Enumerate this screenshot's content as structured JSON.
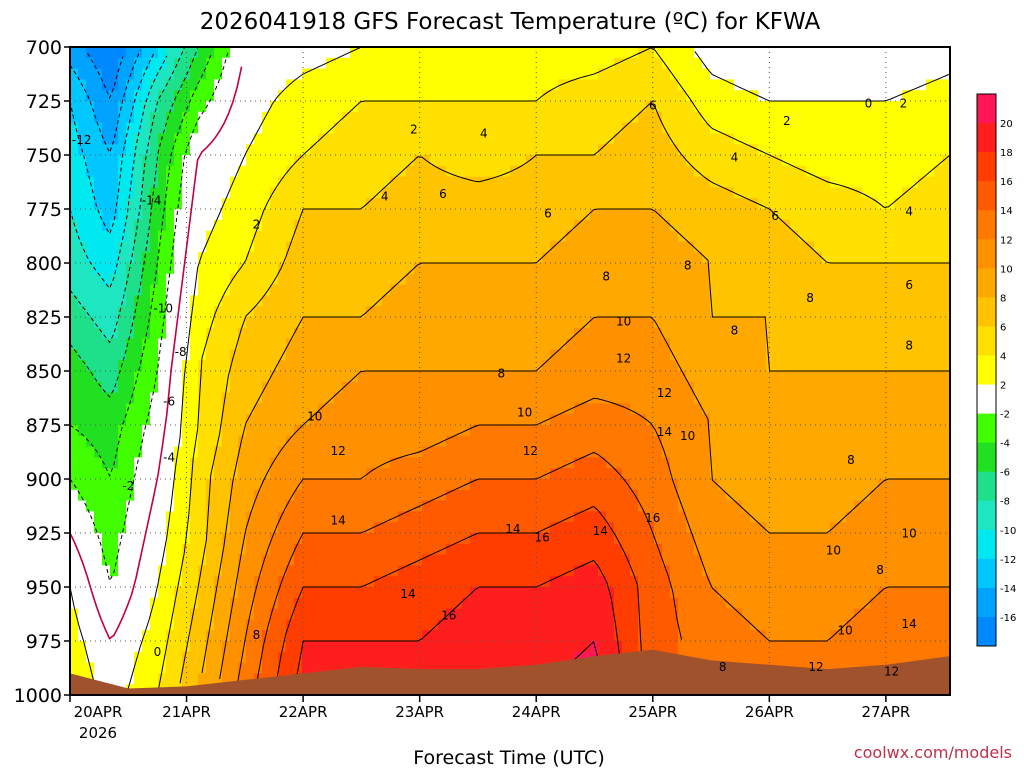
{
  "chart_data": {
    "type": "heatmap",
    "title": "2026041918 GFS Forecast Temperature (ºC) for KFWA",
    "xlabel": "Forecast Time (UTC)",
    "ylabel": "Pressure (hPa)",
    "x_ticks": [
      "20APR",
      "21APR",
      "22APR",
      "23APR",
      "24APR",
      "25APR",
      "26APR",
      "27APR"
    ],
    "x_year": "2026",
    "y_ticks": [
      700,
      725,
      750,
      775,
      800,
      825,
      850,
      875,
      900,
      925,
      950,
      975,
      1000
    ],
    "ylim": [
      1000,
      700
    ],
    "x_range_days": [
      0.0,
      7.55
    ],
    "grid": true,
    "colorbar_levels": [
      20,
      18,
      16,
      14,
      12,
      10,
      8,
      6,
      4,
      2,
      -2,
      -4,
      -6,
      -8,
      -10,
      -12,
      -14,
      -16
    ],
    "colorbar_colors": [
      "#ff1658",
      "#ff1e1e",
      "#ff3d00",
      "#ff5a00",
      "#ff7800",
      "#ff9100",
      "#ffa800",
      "#ffc300",
      "#ffe000",
      "#ffff00",
      "#ffffff",
      "#41ff00",
      "#21df21",
      "#1fe08a",
      "#1ee6c0",
      "#00e8f0",
      "#00c8ff",
      "#00a4ff",
      "#0088ff"
    ],
    "profiles": [
      {
        "day": 0.0,
        "t": [
          -15,
          -12,
          -11,
          -10,
          -9,
          -7,
          -5,
          -4,
          -2,
          0,
          2,
          3,
          4
        ]
      },
      {
        "day": 0.35,
        "t": [
          -18,
          -16,
          -14,
          -13,
          -11,
          -9,
          -7,
          -5,
          -4,
          -3,
          -2,
          0,
          1
        ]
      },
      {
        "day": 0.75,
        "t": [
          -12,
          -8,
          -6,
          -5,
          -4,
          -3,
          -2,
          -1,
          0,
          1,
          2,
          3,
          4
        ]
      },
      {
        "day": 1.1,
        "t": [
          -6,
          -3,
          0,
          1,
          2,
          3,
          4,
          4,
          5,
          5,
          6,
          7,
          8
        ]
      },
      {
        "day": 1.5,
        "t": [
          0,
          1,
          2,
          3,
          4,
          6,
          7,
          8,
          9,
          10,
          11,
          12,
          13
        ]
      },
      {
        "day": 2.0,
        "t": [
          1,
          3,
          4,
          6,
          7,
          8,
          9,
          10,
          12,
          14,
          16,
          18,
          19
        ]
      },
      {
        "day": 2.5,
        "t": [
          2,
          4,
          5,
          6,
          7,
          8,
          10,
          11,
          12,
          14,
          16,
          18,
          19
        ]
      },
      {
        "day": 3.0,
        "t": [
          3,
          4,
          6,
          7,
          8,
          9,
          10,
          11,
          13,
          15,
          17,
          18,
          19
        ]
      },
      {
        "day": 3.5,
        "t": [
          2,
          4,
          5,
          7,
          8,
          9,
          10,
          12,
          14,
          16,
          18,
          19,
          20
        ]
      },
      {
        "day": 4.0,
        "t": [
          3,
          4,
          6,
          7,
          8,
          9,
          10,
          12,
          14,
          16,
          18,
          19,
          20
        ]
      },
      {
        "day": 4.5,
        "t": [
          3,
          5,
          6,
          8,
          9,
          10,
          11,
          13,
          15,
          17,
          19,
          20,
          21
        ]
      },
      {
        "day": 5.0,
        "t": [
          4,
          6,
          7,
          8,
          9,
          10,
          11,
          12,
          13,
          14,
          15,
          15,
          15
        ]
      },
      {
        "day": 5.5,
        "t": [
          1,
          3,
          5,
          7,
          8,
          8,
          9,
          10,
          10,
          11,
          12,
          13,
          13
        ]
      },
      {
        "day": 6.0,
        "t": [
          0,
          2,
          4,
          6,
          7,
          8,
          8,
          9,
          9,
          10,
          11,
          12,
          12
        ]
      },
      {
        "day": 6.5,
        "t": [
          0,
          2,
          3,
          5,
          6,
          7,
          8,
          8,
          9,
          10,
          11,
          12,
          12
        ]
      },
      {
        "day": 7.0,
        "t": [
          0,
          2,
          3,
          4,
          6,
          7,
          8,
          9,
          10,
          11,
          12,
          13,
          14
        ]
      },
      {
        "day": 7.55,
        "t": [
          1,
          3,
          4,
          5,
          6,
          7,
          8,
          9,
          10,
          11,
          12,
          13,
          14
        ]
      }
    ],
    "surface_pressure": [
      {
        "day": 0.0,
        "p": 990
      },
      {
        "day": 0.5,
        "p": 997
      },
      {
        "day": 1.0,
        "p": 996
      },
      {
        "day": 1.5,
        "p": 993
      },
      {
        "day": 2.0,
        "p": 990
      },
      {
        "day": 2.5,
        "p": 987
      },
      {
        "day": 3.0,
        "p": 988
      },
      {
        "day": 3.5,
        "p": 988
      },
      {
        "day": 4.0,
        "p": 986
      },
      {
        "day": 4.5,
        "p": 982
      },
      {
        "day": 5.0,
        "p": 979
      },
      {
        "day": 5.5,
        "p": 984
      },
      {
        "day": 6.0,
        "p": 986
      },
      {
        "day": 6.5,
        "p": 988
      },
      {
        "day": 7.0,
        "p": 986
      },
      {
        "day": 7.55,
        "p": 982
      }
    ],
    "contour_labels": [
      {
        "text": "-12",
        "day": 0.1,
        "p": 745
      },
      {
        "text": "-14",
        "day": 0.7,
        "p": 773
      },
      {
        "text": "-10",
        "day": 0.8,
        "p": 823
      },
      {
        "text": "-8",
        "day": 0.95,
        "p": 843
      },
      {
        "text": "-6",
        "day": 0.85,
        "p": 866
      },
      {
        "text": "-4",
        "day": 0.85,
        "p": 892
      },
      {
        "text": "-2",
        "day": 0.5,
        "p": 905
      },
      {
        "text": "0",
        "day": 0.75,
        "p": 982
      },
      {
        "text": "2",
        "day": 1.6,
        "p": 784
      },
      {
        "text": "2",
        "day": 2.95,
        "p": 740
      },
      {
        "text": "4",
        "day": 2.7,
        "p": 771
      },
      {
        "text": "4",
        "day": 3.55,
        "p": 742
      },
      {
        "text": "6",
        "day": 3.2,
        "p": 770
      },
      {
        "text": "6",
        "day": 4.1,
        "p": 779
      },
      {
        "text": "8",
        "day": 4.6,
        "p": 808
      },
      {
        "text": "8",
        "day": 5.3,
        "p": 803
      },
      {
        "text": "10",
        "day": 2.1,
        "p": 873
      },
      {
        "text": "12",
        "day": 2.3,
        "p": 889
      },
      {
        "text": "14",
        "day": 2.3,
        "p": 921
      },
      {
        "text": "14",
        "day": 2.9,
        "p": 955
      },
      {
        "text": "16",
        "day": 3.25,
        "p": 965
      },
      {
        "text": "8",
        "day": 3.7,
        "p": 853
      },
      {
        "text": "10",
        "day": 3.9,
        "p": 871
      },
      {
        "text": "12",
        "day": 3.95,
        "p": 889
      },
      {
        "text": "14",
        "day": 3.8,
        "p": 925
      },
      {
        "text": "16",
        "day": 4.05,
        "p": 929
      },
      {
        "text": "10",
        "day": 4.75,
        "p": 829
      },
      {
        "text": "12",
        "day": 4.75,
        "p": 846
      },
      {
        "text": "14",
        "day": 4.55,
        "p": 926
      },
      {
        "text": "16",
        "day": 5.0,
        "p": 920
      },
      {
        "text": "14",
        "day": 5.1,
        "p": 880
      },
      {
        "text": "12",
        "day": 5.1,
        "p": 862
      },
      {
        "text": "10",
        "day": 5.3,
        "p": 882
      },
      {
        "text": "8",
        "day": 5.7,
        "p": 833
      },
      {
        "text": "8",
        "day": 6.35,
        "p": 818
      },
      {
        "text": "6",
        "day": 6.05,
        "p": 780
      },
      {
        "text": "4",
        "day": 5.7,
        "p": 753
      },
      {
        "text": "2",
        "day": 6.15,
        "p": 736
      },
      {
        "text": "0",
        "day": 6.85,
        "p": 728
      },
      {
        "text": "2",
        "day": 7.15,
        "p": 728
      },
      {
        "text": "6",
        "day": 5.0,
        "p": 729
      },
      {
        "text": "4",
        "day": 5.0,
        "p": 701
      },
      {
        "text": "4",
        "day": 7.2,
        "p": 778
      },
      {
        "text": "6",
        "day": 7.2,
        "p": 812
      },
      {
        "text": "8",
        "day": 7.2,
        "p": 840
      },
      {
        "text": "8",
        "day": 6.7,
        "p": 893
      },
      {
        "text": "10",
        "day": 7.2,
        "p": 927
      },
      {
        "text": "10",
        "day": 6.55,
        "p": 935
      },
      {
        "text": "8",
        "day": 6.95,
        "p": 944
      },
      {
        "text": "14",
        "day": 7.2,
        "p": 969
      },
      {
        "text": "10",
        "day": 6.65,
        "p": 972
      },
      {
        "text": "12",
        "day": 7.05,
        "p": 991
      },
      {
        "text": "12",
        "day": 6.4,
        "p": 989
      },
      {
        "text": "8",
        "day": 5.6,
        "p": 989
      },
      {
        "text": "8",
        "day": 1.6,
        "p": 974
      }
    ]
  },
  "credit": "coolwx.com/models",
  "colors": {
    "ground": "#a0522d",
    "zero_line": "#c0004a",
    "credit": "#c0304a"
  }
}
